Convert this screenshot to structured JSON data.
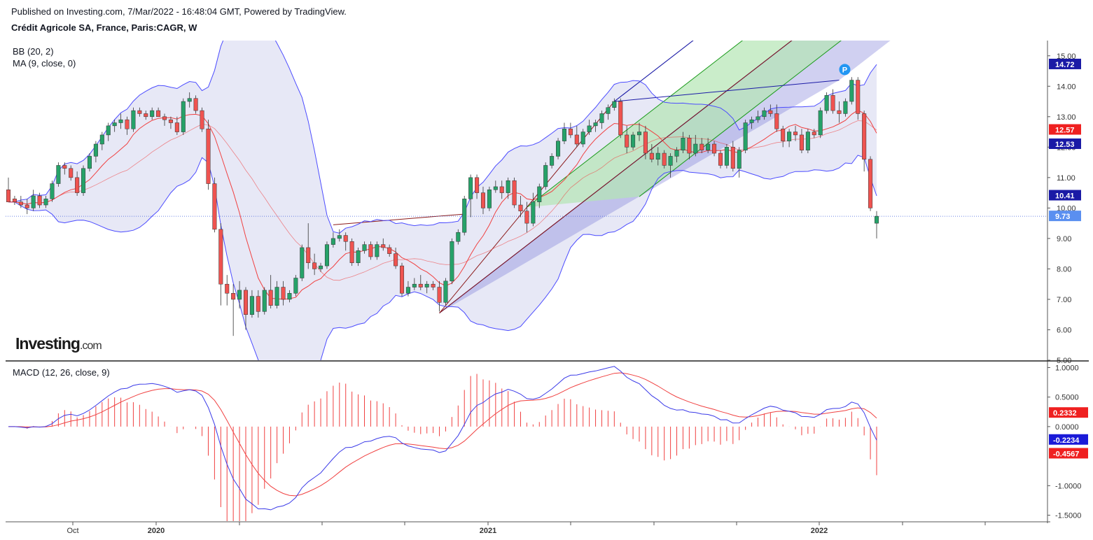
{
  "header": {
    "published": "Published on Investing.com, 7/Mar/2022 - 16:48:04 GMT, Powered by TradingView.",
    "title": "Crédit Agricole SA, France, Paris:CAGR, W"
  },
  "logo": {
    "text": "Investing",
    "suffix": ".com"
  },
  "colors": {
    "up": "#26a269",
    "down": "#ef5350",
    "bb_band": "#4c4cff",
    "bb_fill": "#e3e4f5",
    "ma": "#f04040",
    "pitch_outer": "#1a1aa6",
    "pitch_mid": "#1a9a1a",
    "pitch_median": "#8b1a1a",
    "macd": "#3a3ae8",
    "signal": "#f04040",
    "hist": "#f04040"
  },
  "indicators": {
    "bb": "BB (20, 2)",
    "ma": "MA (9, close, 0)",
    "macd": "MACD (12, 26, close, 9)"
  },
  "chart_data": [
    {
      "type": "candlestick",
      "title": "Crédit Agricole SA, France, Paris:CAGR, W",
      "ylim": [
        5.0,
        15.5
      ],
      "yticks": [
        "15.00",
        "14.00",
        "13.00",
        "12.00",
        "11.00",
        "10.00",
        "9.00",
        "8.00",
        "7.00",
        "6.00",
        "5.00"
      ],
      "xticks": [
        "Oct",
        "2020",
        "2021",
        "2022"
      ],
      "last_price": 9.73,
      "price_labels": [
        {
          "value": "14.72",
          "color": "#1a1aa6"
        },
        {
          "value": "12.57",
          "color": "#ef2020"
        },
        {
          "value": "12.53",
          "color": "#1a1aa6"
        },
        {
          "value": "10.41",
          "color": "#1a1aa6"
        },
        {
          "value": "9.73",
          "color": "#5a8ff0"
        }
      ],
      "pitchfork_marker": "P",
      "candles": [
        [
          10.6,
          11.0,
          10.3,
          10.2
        ],
        [
          10.3,
          10.4,
          10.1,
          10.2
        ],
        [
          10.2,
          10.4,
          10.0,
          10.1
        ],
        [
          10.1,
          10.3,
          9.8,
          10.0
        ],
        [
          10.0,
          10.6,
          9.9,
          10.4
        ],
        [
          10.4,
          10.5,
          10.0,
          10.1
        ],
        [
          10.1,
          10.4,
          10.0,
          10.3
        ],
        [
          10.3,
          10.9,
          10.2,
          10.8
        ],
        [
          10.8,
          11.5,
          10.7,
          11.4
        ],
        [
          11.4,
          11.5,
          11.1,
          11.3
        ],
        [
          11.3,
          11.4,
          10.9,
          11.0
        ],
        [
          11.0,
          11.2,
          10.4,
          10.5
        ],
        [
          10.5,
          11.4,
          10.4,
          11.3
        ],
        [
          11.3,
          11.8,
          11.2,
          11.7
        ],
        [
          11.7,
          12.2,
          11.5,
          12.1
        ],
        [
          12.1,
          12.5,
          11.9,
          12.4
        ],
        [
          12.4,
          12.8,
          12.2,
          12.7
        ],
        [
          12.7,
          12.9,
          12.5,
          12.8
        ],
        [
          12.8,
          13.1,
          12.6,
          12.9
        ],
        [
          12.9,
          13.0,
          12.4,
          12.6
        ],
        [
          12.6,
          13.3,
          12.5,
          13.2
        ],
        [
          13.2,
          13.3,
          13.0,
          13.1
        ],
        [
          13.1,
          13.2,
          12.9,
          13.0
        ],
        [
          13.0,
          13.3,
          12.9,
          13.2
        ],
        [
          13.2,
          13.3,
          13.0,
          13.0
        ],
        [
          13.0,
          13.1,
          12.7,
          12.9
        ],
        [
          12.9,
          13.0,
          12.6,
          12.8
        ],
        [
          12.8,
          13.0,
          12.4,
          12.5
        ],
        [
          12.5,
          13.6,
          12.4,
          13.5
        ],
        [
          13.5,
          13.8,
          13.3,
          13.6
        ],
        [
          13.6,
          13.7,
          13.1,
          13.2
        ],
        [
          13.2,
          13.3,
          12.5,
          12.6
        ],
        [
          12.6,
          12.9,
          10.6,
          10.8
        ],
        [
          10.8,
          11.0,
          9.2,
          9.3
        ],
        [
          9.3,
          9.5,
          6.8,
          7.5
        ],
        [
          7.5,
          7.8,
          6.8,
          7.2
        ],
        [
          7.2,
          7.5,
          5.8,
          7.0
        ],
        [
          7.0,
          7.6,
          6.7,
          7.3
        ],
        [
          7.3,
          7.4,
          6.0,
          6.5
        ],
        [
          6.5,
          7.3,
          6.4,
          7.1
        ],
        [
          7.1,
          7.3,
          6.4,
          6.6
        ],
        [
          6.6,
          7.4,
          6.5,
          7.3
        ],
        [
          7.3,
          7.8,
          6.7,
          6.8
        ],
        [
          6.8,
          7.6,
          6.7,
          7.4
        ],
        [
          7.4,
          7.6,
          6.8,
          7.0
        ],
        [
          7.0,
          7.3,
          6.9,
          7.2
        ],
        [
          7.2,
          7.8,
          7.1,
          7.7
        ],
        [
          7.7,
          8.8,
          7.6,
          8.7
        ],
        [
          8.7,
          9.5,
          8.0,
          8.2
        ],
        [
          8.2,
          8.5,
          7.8,
          8.0
        ],
        [
          8.0,
          8.2,
          7.9,
          8.1
        ],
        [
          8.1,
          8.9,
          8.0,
          8.8
        ],
        [
          8.8,
          9.2,
          8.7,
          9.0
        ],
        [
          9.0,
          9.3,
          8.9,
          9.1
        ],
        [
          9.1,
          9.2,
          8.6,
          8.9
        ],
        [
          8.9,
          9.0,
          8.1,
          8.2
        ],
        [
          8.2,
          8.7,
          8.1,
          8.6
        ],
        [
          8.6,
          8.9,
          8.5,
          8.8
        ],
        [
          8.8,
          8.9,
          8.3,
          8.4
        ],
        [
          8.4,
          8.9,
          8.3,
          8.8
        ],
        [
          8.8,
          9.0,
          8.6,
          8.7
        ],
        [
          8.7,
          8.8,
          8.4,
          8.5
        ],
        [
          8.5,
          8.7,
          8.0,
          8.1
        ],
        [
          8.1,
          8.2,
          7.1,
          7.2
        ],
        [
          7.2,
          7.6,
          7.1,
          7.4
        ],
        [
          7.4,
          7.7,
          7.3,
          7.5
        ],
        [
          7.5,
          7.8,
          7.3,
          7.4
        ],
        [
          7.4,
          7.6,
          7.2,
          7.5
        ],
        [
          7.5,
          7.6,
          7.3,
          7.4
        ],
        [
          7.4,
          7.6,
          6.6,
          6.9
        ],
        [
          6.9,
          7.7,
          6.8,
          7.6
        ],
        [
          7.6,
          9.0,
          7.5,
          8.9
        ],
        [
          8.9,
          9.3,
          8.8,
          9.2
        ],
        [
          9.2,
          10.4,
          9.1,
          10.3
        ],
        [
          10.3,
          11.1,
          9.7,
          11.0
        ],
        [
          11.0,
          11.1,
          10.3,
          10.5
        ],
        [
          10.5,
          10.7,
          9.8,
          10.0
        ],
        [
          10.0,
          10.7,
          9.9,
          10.6
        ],
        [
          10.6,
          10.9,
          10.5,
          10.7
        ],
        [
          10.7,
          10.9,
          10.3,
          10.5
        ],
        [
          10.5,
          11.0,
          10.3,
          10.9
        ],
        [
          10.9,
          11.0,
          10.0,
          10.1
        ],
        [
          10.1,
          10.4,
          9.7,
          9.9
        ],
        [
          9.9,
          10.2,
          9.2,
          9.5
        ],
        [
          9.5,
          10.5,
          9.4,
          10.2
        ],
        [
          10.2,
          10.8,
          10.0,
          10.7
        ],
        [
          10.7,
          11.5,
          10.6,
          11.4
        ],
        [
          11.4,
          11.8,
          11.3,
          11.7
        ],
        [
          11.7,
          12.3,
          11.6,
          12.2
        ],
        [
          12.2,
          12.8,
          12.1,
          12.6
        ],
        [
          12.6,
          12.8,
          12.3,
          12.4
        ],
        [
          12.4,
          12.7,
          12.0,
          12.1
        ],
        [
          12.1,
          12.6,
          12.0,
          12.5
        ],
        [
          12.5,
          12.9,
          12.4,
          12.7
        ],
        [
          12.7,
          12.9,
          12.5,
          12.8
        ],
        [
          12.8,
          13.2,
          12.6,
          13.1
        ],
        [
          13.1,
          13.4,
          12.9,
          13.3
        ],
        [
          13.3,
          13.6,
          13.2,
          13.5
        ],
        [
          13.5,
          13.6,
          12.3,
          12.4
        ],
        [
          12.4,
          12.7,
          11.8,
          12.0
        ],
        [
          12.0,
          12.5,
          11.9,
          12.4
        ],
        [
          12.4,
          12.8,
          12.2,
          12.5
        ],
        [
          12.5,
          12.7,
          11.6,
          11.8
        ],
        [
          11.8,
          12.1,
          11.5,
          11.6
        ],
        [
          11.6,
          12.0,
          11.4,
          11.8
        ],
        [
          11.8,
          11.9,
          11.3,
          11.4
        ],
        [
          11.4,
          11.8,
          11.0,
          11.7
        ],
        [
          11.7,
          12.0,
          11.5,
          11.9
        ],
        [
          11.9,
          12.5,
          11.8,
          12.3
        ],
        [
          12.3,
          12.4,
          11.6,
          11.8
        ],
        [
          11.8,
          12.4,
          11.7,
          12.1
        ],
        [
          12.1,
          12.3,
          11.8,
          11.9
        ],
        [
          11.9,
          12.3,
          11.8,
          12.1
        ],
        [
          12.1,
          12.2,
          11.7,
          11.8
        ],
        [
          11.8,
          11.9,
          11.3,
          11.4
        ],
        [
          11.4,
          12.1,
          11.3,
          12.0
        ],
        [
          12.0,
          12.2,
          11.2,
          11.3
        ],
        [
          11.3,
          12.0,
          11.0,
          11.9
        ],
        [
          11.9,
          12.9,
          11.8,
          12.8
        ],
        [
          12.8,
          13.0,
          12.6,
          12.9
        ],
        [
          12.9,
          13.2,
          12.8,
          13.0
        ],
        [
          13.0,
          13.3,
          12.9,
          13.2
        ],
        [
          13.2,
          13.4,
          13.0,
          13.1
        ],
        [
          13.1,
          13.4,
          12.5,
          12.6
        ],
        [
          12.6,
          12.7,
          12.0,
          12.2
        ],
        [
          12.2,
          12.6,
          12.0,
          12.5
        ],
        [
          12.5,
          12.7,
          12.2,
          12.4
        ],
        [
          12.4,
          12.6,
          11.8,
          11.9
        ],
        [
          11.9,
          12.6,
          11.8,
          12.5
        ],
        [
          12.5,
          12.6,
          12.3,
          12.4
        ],
        [
          12.4,
          13.3,
          12.3,
          13.2
        ],
        [
          13.2,
          13.8,
          13.1,
          13.7
        ],
        [
          13.7,
          13.9,
          13.1,
          13.2
        ],
        [
          13.2,
          13.5,
          12.8,
          13.1
        ],
        [
          13.1,
          13.6,
          13.0,
          13.5
        ],
        [
          13.5,
          14.3,
          13.4,
          14.2
        ],
        [
          14.2,
          14.3,
          12.9,
          13.1
        ],
        [
          13.1,
          13.2,
          11.2,
          11.6
        ],
        [
          11.6,
          11.7,
          9.9,
          10.0
        ],
        [
          9.5,
          9.9,
          9.0,
          9.73
        ]
      ]
    },
    {
      "type": "line",
      "title": "MACD (12, 26, close, 9)",
      "ylim": [
        -1.6,
        1.1
      ],
      "yticks": [
        "1.0000",
        "0.5000",
        "0.0000",
        "-1.0000",
        "-1.5000"
      ],
      "value_labels": [
        {
          "value": "0.2332",
          "color": "#ef2020"
        },
        {
          "value": "-0.2234",
          "color": "#1a1ad8"
        },
        {
          "value": "-0.4567",
          "color": "#ef2020"
        }
      ]
    }
  ]
}
